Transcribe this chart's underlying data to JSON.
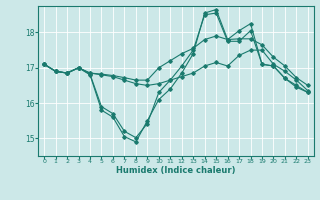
{
  "title": "",
  "xlabel": "Humidex (Indice chaleur)",
  "bg_color": "#cce8e8",
  "line_color": "#1a7a6e",
  "xlim": [
    -0.5,
    23.5
  ],
  "ylim": [
    14.5,
    18.75
  ],
  "yticks": [
    15,
    16,
    17,
    18
  ],
  "xticks": [
    0,
    1,
    2,
    3,
    4,
    5,
    6,
    7,
    8,
    9,
    10,
    11,
    12,
    13,
    14,
    15,
    16,
    17,
    18,
    19,
    20,
    21,
    22,
    23
  ],
  "series": [
    [
      17.1,
      16.9,
      16.85,
      17.0,
      16.8,
      15.8,
      15.6,
      15.05,
      14.9,
      15.5,
      16.1,
      16.4,
      16.85,
      17.4,
      18.55,
      18.65,
      17.8,
      18.05,
      18.25,
      17.1,
      17.05,
      16.7,
      16.5,
      16.3
    ],
    [
      17.1,
      16.9,
      16.85,
      17.0,
      16.85,
      16.8,
      16.75,
      16.65,
      16.55,
      16.5,
      16.55,
      16.65,
      16.75,
      16.85,
      17.05,
      17.15,
      17.05,
      17.35,
      17.5,
      17.5,
      17.1,
      16.9,
      16.65,
      16.35
    ],
    [
      17.1,
      16.9,
      16.85,
      17.0,
      16.85,
      16.82,
      16.78,
      16.72,
      16.65,
      16.65,
      17.0,
      17.2,
      17.4,
      17.55,
      17.8,
      17.9,
      17.8,
      17.82,
      17.82,
      17.65,
      17.3,
      17.05,
      16.72,
      16.5
    ],
    [
      17.1,
      16.9,
      16.85,
      17.0,
      16.82,
      15.9,
      15.7,
      15.2,
      15.02,
      15.42,
      16.3,
      16.65,
      17.05,
      17.5,
      18.5,
      18.55,
      17.75,
      17.75,
      18.05,
      17.1,
      17.05,
      16.7,
      16.45,
      16.3
    ]
  ]
}
